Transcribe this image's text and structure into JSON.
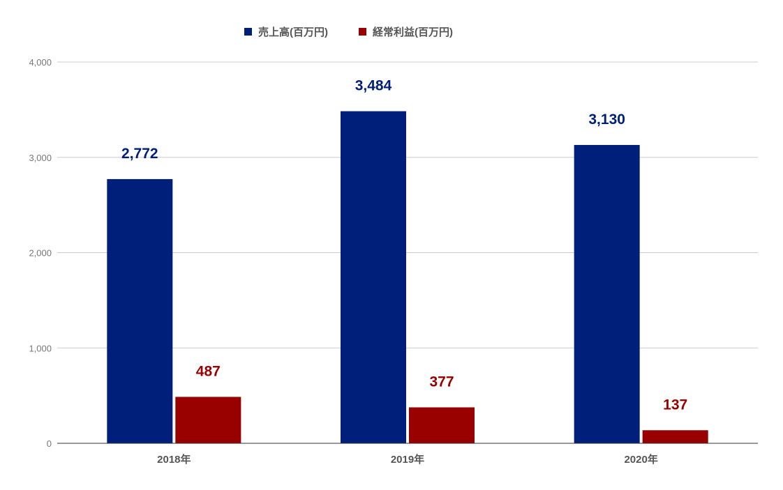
{
  "chart_data": {
    "type": "bar",
    "categories": [
      "2018年",
      "2019年",
      "2020年"
    ],
    "series": [
      {
        "name": "売上高(百万円)",
        "values": [
          2772,
          3484,
          3130
        ],
        "labels": [
          "2,772",
          "3,484",
          "3,130"
        ],
        "color": "#001f7a"
      },
      {
        "name": "経常利益(百万円)",
        "values": [
          487,
          377,
          137
        ],
        "labels": [
          "487",
          "377",
          "137"
        ],
        "color": "#990000"
      }
    ],
    "ylim": [
      0,
      4000
    ],
    "yticks": [
      0,
      1000,
      2000,
      3000,
      4000
    ],
    "ytick_labels": [
      "0",
      "1,000",
      "2,000",
      "3,000",
      "4,000"
    ],
    "legend_position": "top",
    "grid": true,
    "gridline_color": "#cccccc",
    "axis_color": "#333333"
  }
}
